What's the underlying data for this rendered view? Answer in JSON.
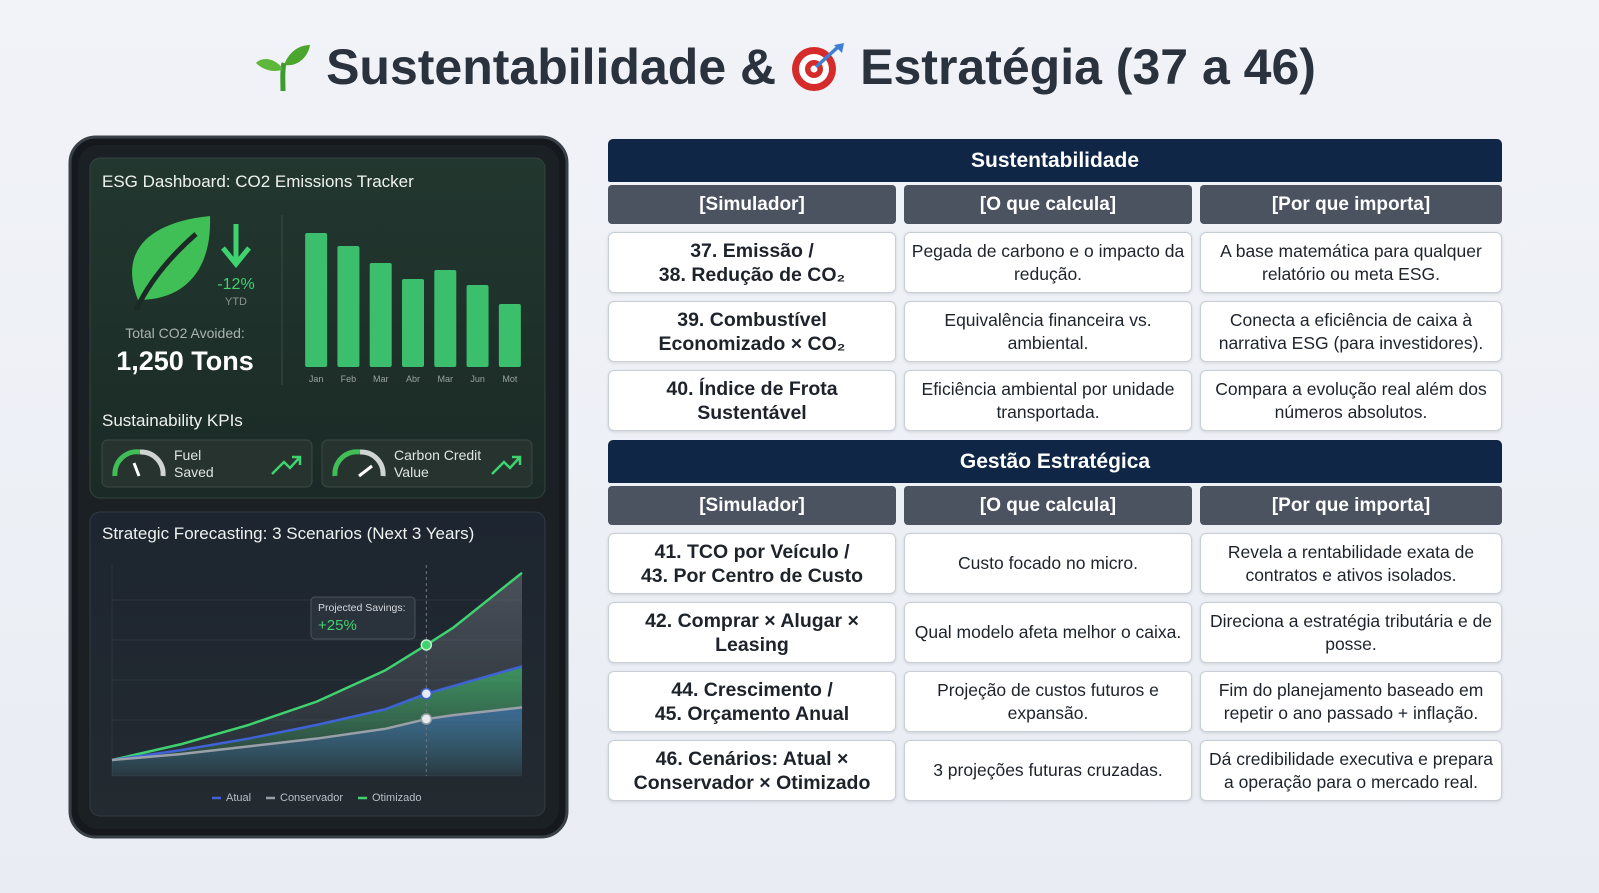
{
  "header": {
    "title_parts": [
      "Sustentabilidade &",
      "Estratégia (37 a 46)"
    ]
  },
  "dashboard": {
    "esg_title": "ESG Dashboard: CO2 Emissions Tracker",
    "change": "-12%",
    "change_period": "YTD",
    "total_label": "Total CO2 Avoided:",
    "total_value": "1,250 Tons",
    "kpi_title": "Sustainability KPIs",
    "kpis": [
      {
        "label_lines": [
          "Fuel",
          "Saved"
        ]
      },
      {
        "label_lines": [
          "Carbon Credit",
          "Value"
        ]
      }
    ],
    "forecast_title": "Strategic Forecasting: 3 Scenarios (Next 3 Years)"
  },
  "chart_data": [
    {
      "type": "bar",
      "categories": [
        "Jan",
        "Feb",
        "Mar",
        "Abr",
        "Mar",
        "Jun",
        "Mot"
      ],
      "values": [
        134,
        121,
        104,
        88,
        97,
        82,
        63
      ],
      "color": "#3cbf6c",
      "ylim": [
        0,
        140
      ]
    },
    {
      "type": "line",
      "x": [
        0,
        0.5,
        1,
        1.5,
        2,
        2.3,
        2.5,
        3
      ],
      "xlim": [
        0,
        3
      ],
      "ylim": [
        0,
        100
      ],
      "series": [
        {
          "name": "Atual",
          "color": "#3f63d6",
          "values": [
            0,
            5,
            11,
            18,
            26,
            34,
            38,
            48
          ]
        },
        {
          "name": "Conservador",
          "color": "#9aa0a8",
          "values": [
            0,
            3,
            7,
            11,
            16,
            21,
            23,
            27
          ]
        },
        {
          "name": "Otimizado",
          "color": "#3fd36f",
          "values": [
            0,
            8,
            18,
            30,
            46,
            59,
            68,
            96
          ]
        }
      ],
      "annotation": {
        "x": 2.3,
        "label": "Projected Savings:",
        "value": "+25%"
      }
    }
  ],
  "table": {
    "sections": [
      {
        "title": "Sustentabilidade",
        "headers": [
          "[Simulador]",
          "[O que calcula]",
          "[Por que importa]"
        ],
        "rows": [
          [
            "37. Emissão /\n38. Redução de CO₂",
            "Pegada de carbono e o impacto da redução.",
            "A base matemática para qualquer relatório ou meta ESG."
          ],
          [
            "39. Combustível\nEconomizado × CO₂",
            "Equivalência financeira vs. ambiental.",
            "Conecta a eficiência de caixa à narrativa ESG (para investidores)."
          ],
          [
            "40. Índice de Frota\nSustentável",
            "Eficiência ambiental por unidade transportada.",
            "Compara a evolução real além dos números absolutos."
          ]
        ]
      },
      {
        "title": "Gestão Estratégica",
        "headers": [
          "[Simulador]",
          "[O que calcula]",
          "[Por que importa]"
        ],
        "rows": [
          [
            "41. TCO por Veículo /\n43. Por Centro de Custo",
            "Custo focado no micro.",
            "Revela a rentabilidade exata de contratos e ativos isolados."
          ],
          [
            "42. Comprar × Alugar ×\nLeasing",
            "Qual modelo afeta melhor o caixa.",
            "Direciona a estratégia tributária e de posse."
          ],
          [
            "44. Crescimento /\n45. Orçamento Anual",
            "Projeção de custos futuros e expansão.",
            "Fim do planejamento baseado em repetir o ano passado + inflação."
          ],
          [
            "46. Cenários: Atual ×\nConservador × Otimizado",
            "3 projeções futuras cruzadas.",
            "Dá credibilidade executiva e prepara a operação para o mercado real."
          ]
        ]
      }
    ]
  }
}
